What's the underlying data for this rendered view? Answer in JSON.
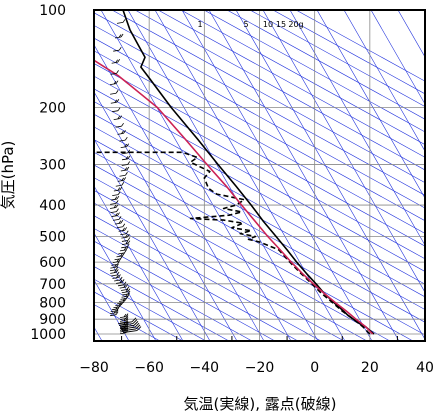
{
  "chart_data": {
    "type": "line",
    "xlabel": "気温(実線), 露点(破線)",
    "ylabel": "気圧(hPa)",
    "x_unit": "°C",
    "xlim": [
      -80,
      40
    ],
    "ylim": [
      1050,
      100
    ],
    "y_scale": "log",
    "x_ticks": [
      -80,
      -60,
      -40,
      -20,
      0,
      20,
      40
    ],
    "x_tick_labels": [
      "−80",
      "−60",
      "−40",
      "−20",
      "0",
      "20",
      "40"
    ],
    "y_ticks": [
      100,
      200,
      300,
      400,
      500,
      600,
      700,
      800,
      900,
      1000
    ],
    "y_tick_labels": [
      "100",
      "200",
      "300",
      "400",
      "500",
      "600",
      "700",
      "800",
      "900",
      "1000"
    ],
    "grid": true,
    "mixing_ratio_labels": [
      "1",
      "5",
      "10",
      "15",
      "20g"
    ],
    "colors": {
      "temperature": "#000000",
      "dewpoint": "#000000",
      "parcel": "#cc2255",
      "reference_lines": "#2233dd",
      "grid": "#888888"
    },
    "series": [
      {
        "style": "solid",
        "color": "#000000",
        "points": [
          {
            "t": 21.5,
            "p": 1000
          },
          {
            "t": 20.0,
            "p": 975
          },
          {
            "t": 18.5,
            "p": 950
          },
          {
            "t": 16.0,
            "p": 925
          },
          {
            "t": 14.0,
            "p": 900
          },
          {
            "t": 12.0,
            "p": 875
          },
          {
            "t": 10.5,
            "p": 850
          },
          {
            "t": 7.0,
            "p": 800
          },
          {
            "t": 3.5,
            "p": 750
          },
          {
            "t": 0.5,
            "p": 700
          },
          {
            "t": -3.0,
            "p": 650
          },
          {
            "t": -6.5,
            "p": 600
          },
          {
            "t": -10.0,
            "p": 550
          },
          {
            "t": -14.0,
            "p": 500
          },
          {
            "t": -18.5,
            "p": 450
          },
          {
            "t": -23.0,
            "p": 400
          },
          {
            "t": -28.5,
            "p": 350
          },
          {
            "t": -35.0,
            "p": 300
          },
          {
            "t": -42.5,
            "p": 250
          },
          {
            "t": -52.0,
            "p": 200
          },
          {
            "t": -60.5,
            "p": 160
          },
          {
            "t": -63.0,
            "p": 150
          },
          {
            "t": -61.5,
            "p": 140
          },
          {
            "t": -64.0,
            "p": 128
          },
          {
            "t": -67.0,
            "p": 115
          },
          {
            "t": -69.5,
            "p": 100
          }
        ]
      },
      {
        "style": "dashed",
        "color": "#000000",
        "points": [
          {
            "t": 20.0,
            "p": 1000
          },
          {
            "t": 17.5,
            "p": 950
          },
          {
            "t": 14.0,
            "p": 900
          },
          {
            "t": 10.0,
            "p": 850
          },
          {
            "t": 6.5,
            "p": 800
          },
          {
            "t": 2.5,
            "p": 750
          },
          {
            "t": -1.0,
            "p": 700
          },
          {
            "t": -5.0,
            "p": 650
          },
          {
            "t": -9.0,
            "p": 600
          },
          {
            "t": -13.0,
            "p": 550
          },
          {
            "t": -17.5,
            "p": 530
          },
          {
            "t": -20.0,
            "p": 520
          },
          {
            "t": -24.0,
            "p": 510
          },
          {
            "t": -21.5,
            "p": 500
          },
          {
            "t": -27.0,
            "p": 490
          },
          {
            "t": -23.0,
            "p": 480
          },
          {
            "t": -30.0,
            "p": 470
          },
          {
            "t": -26.0,
            "p": 455
          },
          {
            "t": -33.0,
            "p": 445
          },
          {
            "t": -45.0,
            "p": 440
          },
          {
            "t": -31.0,
            "p": 430
          },
          {
            "t": -26.5,
            "p": 420
          },
          {
            "t": -33.0,
            "p": 410
          },
          {
            "t": -28.5,
            "p": 400
          },
          {
            "t": -25.5,
            "p": 385
          },
          {
            "t": -35.5,
            "p": 370
          },
          {
            "t": -38.5,
            "p": 355
          },
          {
            "t": -40.0,
            "p": 330
          },
          {
            "t": -38.0,
            "p": 315
          },
          {
            "t": -45.0,
            "p": 295
          },
          {
            "t": -42.5,
            "p": 285
          },
          {
            "t": -48.0,
            "p": 275
          },
          {
            "t": -82.0,
            "p": 275
          }
        ]
      },
      {
        "style": "solid",
        "color": "#cc2255",
        "points": [
          {
            "t": 21.0,
            "p": 1000
          },
          {
            "t": 18.5,
            "p": 950
          },
          {
            "t": 15.0,
            "p": 900
          },
          {
            "t": 11.5,
            "p": 850
          },
          {
            "t": 7.5,
            "p": 800
          },
          {
            "t": 3.5,
            "p": 750
          },
          {
            "t": -0.5,
            "p": 700
          },
          {
            "t": -4.5,
            "p": 650
          },
          {
            "t": -8.5,
            "p": 600
          },
          {
            "t": -12.5,
            "p": 550
          },
          {
            "t": -17.0,
            "p": 500
          },
          {
            "t": -21.5,
            "p": 450
          },
          {
            "t": -26.5,
            "p": 400
          },
          {
            "t": -32.0,
            "p": 350
          },
          {
            "t": -39.0,
            "p": 300
          },
          {
            "t": -47.0,
            "p": 250
          },
          {
            "t": -57.0,
            "p": 200
          },
          {
            "t": -71.0,
            "p": 160
          },
          {
            "t": -80.0,
            "p": 143
          }
        ]
      }
    ]
  }
}
